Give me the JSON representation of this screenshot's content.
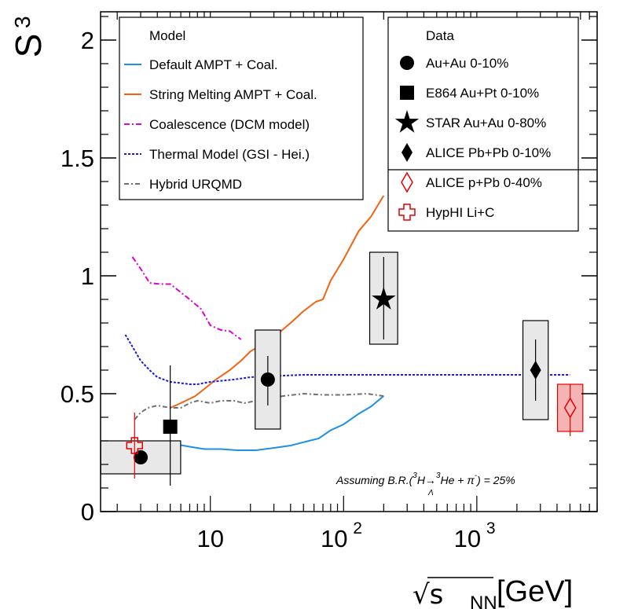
{
  "chart_data": {
    "type": "scatter",
    "ylabel": "S",
    "ylabel_sub": "3",
    "xlabel": "√s",
    "xlabel_sub": "NN",
    "xlabel_unit": "[GeV]",
    "x_scale": "log",
    "xlim": [
      1.5,
      8000
    ],
    "ylim": [
      0,
      2.12
    ],
    "y_ticks": [
      {
        "v": 0,
        "label": "0"
      },
      {
        "v": 0.5,
        "label": "0.5"
      },
      {
        "v": 1,
        "label": "1"
      },
      {
        "v": 1.5,
        "label": "1.5"
      },
      {
        "v": 2,
        "label": "2"
      }
    ],
    "x_ticks": [
      {
        "v": 10,
        "base": "10",
        "exp": ""
      },
      {
        "v": 100,
        "base": "10",
        "exp": "2"
      },
      {
        "v": 1000,
        "base": "10",
        "exp": "3"
      }
    ],
    "model_legend_title": "Model",
    "data_legend_title": "Data",
    "annotation": "Assuming B.R.(",
    "annotation_sub": "Λ",
    "annotation_sup1": "3",
    "annotation_mid": "H→",
    "annotation_sup2": "3",
    "annotation_end": "He + π",
    "annotation_sup3": "-",
    "annotation_tail": ") = 25%",
    "curves": [
      {
        "name": "Default AMPT + Coal.",
        "color": "#1e90e6",
        "dash": "",
        "x": [
          5,
          7,
          9,
          12,
          16,
          22,
          30,
          40,
          55,
          65,
          80,
          100,
          130,
          160,
          200
        ],
        "y": [
          0.29,
          0.275,
          0.265,
          0.265,
          0.26,
          0.26,
          0.27,
          0.28,
          0.3,
          0.31,
          0.345,
          0.37,
          0.415,
          0.445,
          0.49
        ]
      },
      {
        "name": "String Melting AMPT + Coal.",
        "color": "#f06414",
        "dash": "",
        "x": [
          5,
          6,
          7.7,
          9,
          11,
          14,
          17,
          20,
          25,
          30,
          40,
          50,
          62,
          70,
          80,
          100,
          130,
          160,
          200
        ],
        "y": [
          0.44,
          0.46,
          0.49,
          0.52,
          0.56,
          0.6,
          0.64,
          0.68,
          0.71,
          0.74,
          0.8,
          0.85,
          0.89,
          0.9,
          0.98,
          1.07,
          1.19,
          1.25,
          1.34
        ]
      },
      {
        "name": "Coalescence (DCM model)",
        "color": "#e000d8",
        "dash": "7,3,2,3",
        "x": [
          2.6,
          3,
          3.5,
          4.2,
          5,
          6,
          7,
          8.5,
          10,
          12,
          14,
          17
        ],
        "y": [
          1.08,
          1.03,
          0.97,
          0.965,
          0.965,
          0.93,
          0.9,
          0.86,
          0.79,
          0.77,
          0.765,
          0.73
        ]
      },
      {
        "name": "Thermal Model (GSI - Hei.)",
        "color": "#1a1ad8",
        "dash": "3,2",
        "x": [
          2.3,
          2.6,
          3,
          3.5,
          4,
          5,
          6,
          7,
          8,
          10,
          15,
          20,
          30,
          50,
          100,
          300,
          1000,
          3000,
          5000
        ],
        "y": [
          0.75,
          0.7,
          0.64,
          0.6,
          0.57,
          0.55,
          0.545,
          0.54,
          0.54,
          0.55,
          0.56,
          0.57,
          0.575,
          0.58,
          0.58,
          0.58,
          0.58,
          0.58,
          0.58
        ]
      },
      {
        "name": "Hybrid URQMD",
        "color": "#707070",
        "dash": "6,3,2,3",
        "x": [
          2.7,
          3,
          3.4,
          4,
          5,
          6,
          7,
          8,
          10,
          12,
          15,
          18,
          22,
          27,
          35,
          50,
          70,
          100,
          150,
          200
        ],
        "y": [
          0.39,
          0.42,
          0.44,
          0.45,
          0.44,
          0.44,
          0.46,
          0.47,
          0.46,
          0.47,
          0.47,
          0.46,
          0.47,
          0.48,
          0.49,
          0.5,
          0.495,
          0.495,
          0.5,
          0.49
        ]
      }
    ],
    "points": [
      {
        "name": "Au+Au 0-10%",
        "marker": "circle",
        "color": "#000",
        "entries": [
          {
            "x": 3,
            "y": 0.23,
            "syslo": 0.16,
            "syshi": 0.3,
            "sw": 0.6,
            "statlo": 0.23,
            "stathi": 0.23
          },
          {
            "x": 27,
            "y": 0.56,
            "syslo": 0.35,
            "syshi": 0.77,
            "sw": 0.19,
            "statlo": 0.45,
            "stathi": 0.66
          }
        ]
      },
      {
        "name": "E864 Au+Pt 0-10%",
        "marker": "square",
        "color": "#000",
        "entries": [
          {
            "x": 5,
            "y": 0.36,
            "statlo": 0.11,
            "stathi": 0.62
          }
        ]
      },
      {
        "name": "STAR Au+Au 0-80%",
        "marker": "star",
        "color": "#000",
        "entries": [
          {
            "x": 200,
            "y": 0.9,
            "syslo": 0.71,
            "syshi": 1.1,
            "sw": 0.21,
            "statlo": 0.73,
            "stathi": 1.08
          }
        ]
      },
      {
        "name": "ALICE Pb+Pb 0-10%",
        "marker": "diamond",
        "color": "#000",
        "entries": [
          {
            "x": 2760,
            "y": 0.6,
            "syslo": 0.39,
            "syshi": 0.81,
            "sw": 0.19,
            "statlo": 0.47,
            "stathi": 0.73
          }
        ]
      },
      {
        "name": "ALICE p+Pb 0-40%",
        "marker": "open-diamond",
        "color": "#e60000",
        "entries": [
          {
            "x": 5020,
            "y": 0.44,
            "syslo": 0.34,
            "syshi": 0.54,
            "sw": 0.19,
            "statlo": 0.32,
            "stathi": 0.54,
            "fill": "#f5b4b4"
          }
        ]
      },
      {
        "name": "HypHI Li+C",
        "marker": "open-cross",
        "color": "#e60000",
        "entries": [
          {
            "x": 2.7,
            "y": 0.28,
            "statlo": 0.14,
            "stathi": 0.42
          }
        ]
      }
    ]
  }
}
